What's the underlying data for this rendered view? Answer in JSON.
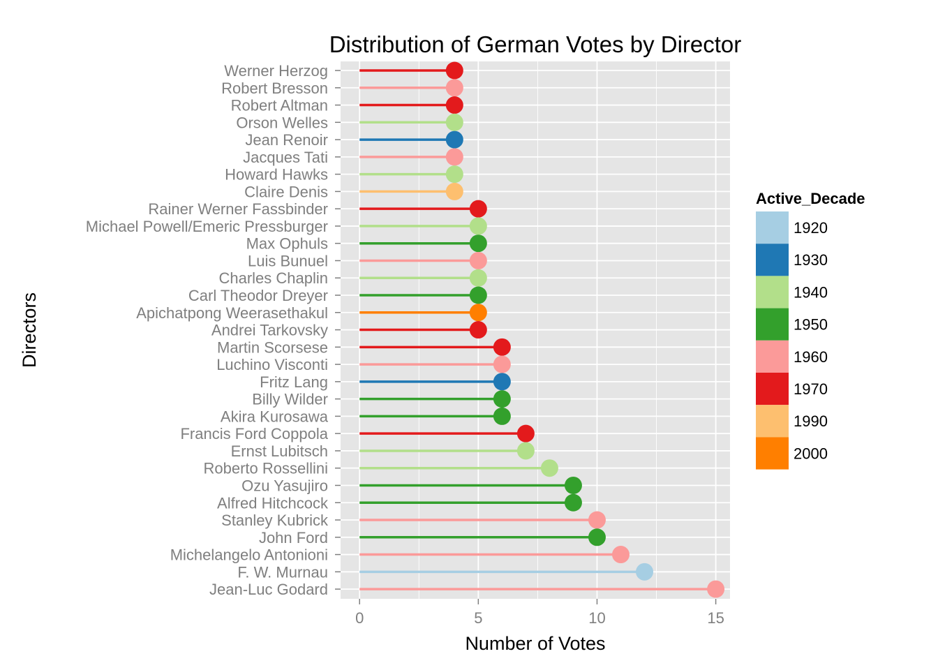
{
  "chart_data": {
    "type": "lollipop",
    "title": "Distribution of German Votes by Director",
    "xlabel": "Number of Votes",
    "ylabel": "Directors",
    "xlim": [
      -0.8,
      15.6
    ],
    "xticks": [
      0,
      5,
      10,
      15
    ],
    "grid": true,
    "legend": {
      "title": "Active_Decade",
      "placement": "right",
      "entries": [
        {
          "label": "1920",
          "color": "#a6cee3"
        },
        {
          "label": "1930",
          "color": "#1f78b4"
        },
        {
          "label": "1940",
          "color": "#b2df8a"
        },
        {
          "label": "1950",
          "color": "#33a02c"
        },
        {
          "label": "1960",
          "color": "#fb9a99"
        },
        {
          "label": "1970",
          "color": "#e31a1c"
        },
        {
          "label": "1990",
          "color": "#fdbf6f"
        },
        {
          "label": "2000",
          "color": "#ff7f00"
        }
      ]
    },
    "points": [
      {
        "director": "Werner Herzog",
        "votes": 4,
        "decade": "1970"
      },
      {
        "director": "Robert Bresson",
        "votes": 4,
        "decade": "1960"
      },
      {
        "director": "Robert Altman",
        "votes": 4,
        "decade": "1970"
      },
      {
        "director": "Orson Welles",
        "votes": 4,
        "decade": "1940"
      },
      {
        "director": "Jean Renoir",
        "votes": 4,
        "decade": "1930"
      },
      {
        "director": "Jacques Tati",
        "votes": 4,
        "decade": "1960"
      },
      {
        "director": "Howard Hawks",
        "votes": 4,
        "decade": "1940"
      },
      {
        "director": "Claire Denis",
        "votes": 4,
        "decade": "1990"
      },
      {
        "director": "Rainer Werner Fassbinder",
        "votes": 5,
        "decade": "1970"
      },
      {
        "director": "Michael Powell/Emeric Pressburger",
        "votes": 5,
        "decade": "1940"
      },
      {
        "director": "Max Ophuls",
        "votes": 5,
        "decade": "1950"
      },
      {
        "director": "Luis Bunuel",
        "votes": 5,
        "decade": "1960"
      },
      {
        "director": "Charles Chaplin",
        "votes": 5,
        "decade": "1940"
      },
      {
        "director": "Carl Theodor Dreyer",
        "votes": 5,
        "decade": "1950"
      },
      {
        "director": "Apichatpong Weerasethakul",
        "votes": 5,
        "decade": "2000"
      },
      {
        "director": "Andrei Tarkovsky",
        "votes": 5,
        "decade": "1970"
      },
      {
        "director": "Martin Scorsese",
        "votes": 6,
        "decade": "1970"
      },
      {
        "director": "Luchino Visconti",
        "votes": 6,
        "decade": "1960"
      },
      {
        "director": "Fritz Lang",
        "votes": 6,
        "decade": "1930"
      },
      {
        "director": "Billy Wilder",
        "votes": 6,
        "decade": "1950"
      },
      {
        "director": "Akira Kurosawa",
        "votes": 6,
        "decade": "1950"
      },
      {
        "director": "Francis Ford Coppola",
        "votes": 7,
        "decade": "1970"
      },
      {
        "director": "Ernst Lubitsch",
        "votes": 7,
        "decade": "1940"
      },
      {
        "director": "Roberto Rossellini",
        "votes": 8,
        "decade": "1940"
      },
      {
        "director": "Ozu Yasujiro",
        "votes": 9,
        "decade": "1950"
      },
      {
        "director": "Alfred Hitchcock",
        "votes": 9,
        "decade": "1950"
      },
      {
        "director": "Stanley Kubrick",
        "votes": 10,
        "decade": "1960"
      },
      {
        "director": "John Ford",
        "votes": 10,
        "decade": "1950"
      },
      {
        "director": "Michelangelo Antonioni",
        "votes": 11,
        "decade": "1960"
      },
      {
        "director": "F. W. Murnau",
        "votes": 12,
        "decade": "1920"
      },
      {
        "director": "Jean-Luc Godard",
        "votes": 15,
        "decade": "1960"
      }
    ]
  }
}
